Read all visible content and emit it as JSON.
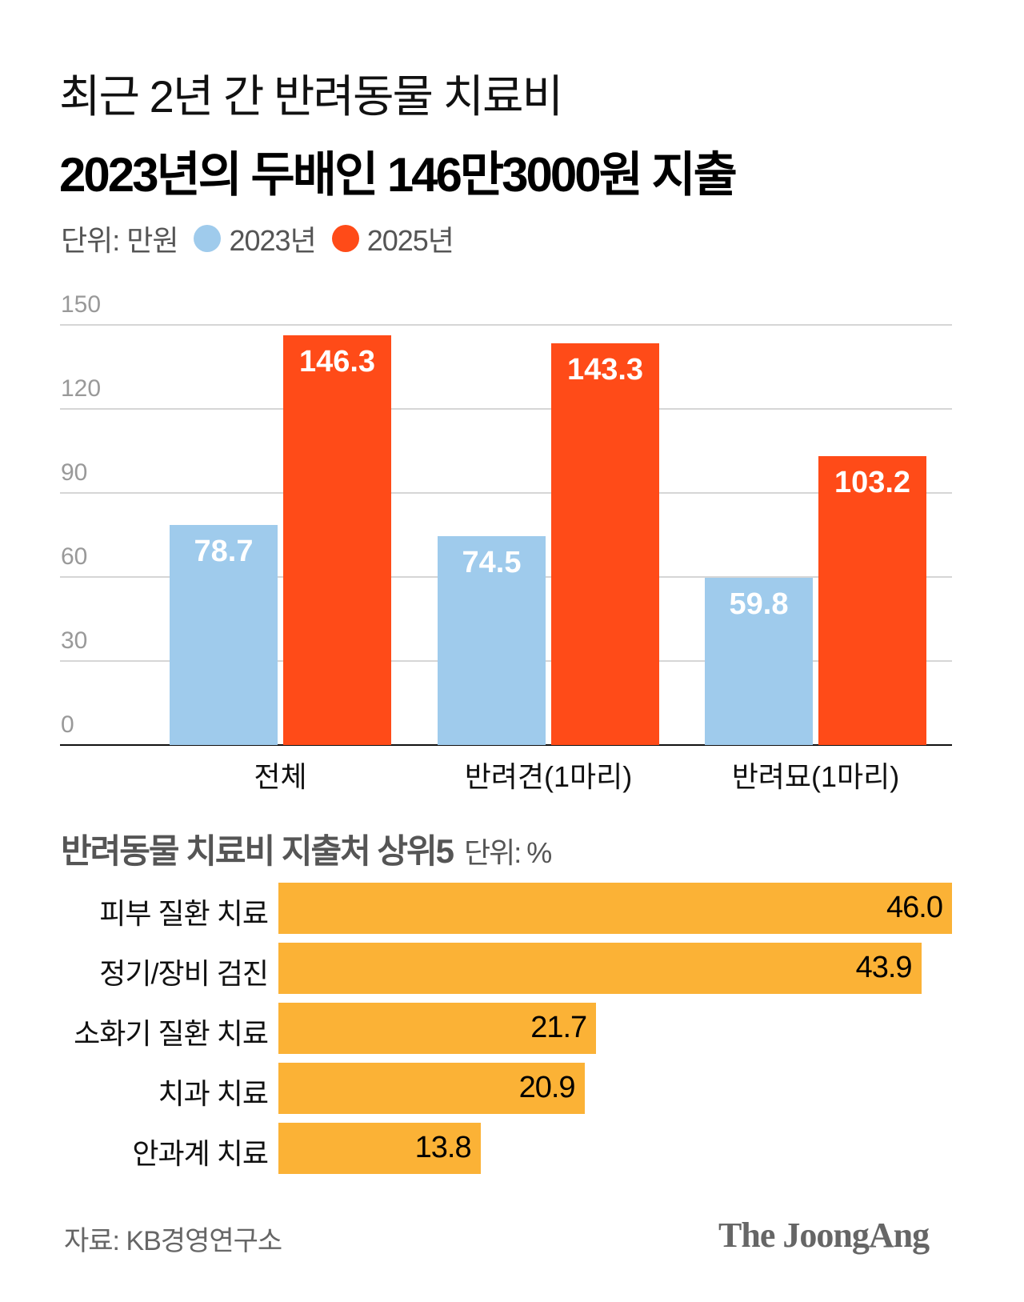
{
  "title": "최근 2년 간 반려동물 치료비",
  "subtitle": "2023년의 두배인 146만3000원 지출",
  "unit": "단위: 만원",
  "colors": {
    "2023": "#9fcbec",
    "2025": "#ff4b18",
    "share": "#fbb236"
  },
  "chart_data": [
    {
      "type": "bar",
      "categories": [
        "전체",
        "반려견(1마리)",
        "반려묘(1마리)"
      ],
      "series": [
        {
          "name": "2023년",
          "values": [
            78.7,
            74.5,
            59.8
          ],
          "labels": [
            "78.7",
            "74.5",
            "59.8"
          ]
        },
        {
          "name": "2025년",
          "values": [
            146.3,
            143.3,
            103.2
          ],
          "labels": [
            "146.3",
            "143.3",
            "103.2"
          ]
        }
      ],
      "yticks": [
        "0",
        "30",
        "60",
        "90",
        "120",
        "150"
      ],
      "ylim": [
        0,
        150
      ],
      "grid": true,
      "legend": "top-left"
    },
    {
      "type": "bar",
      "orientation": "horizontal",
      "title": "반려동물 치료비 지출처 상위5",
      "unit": "단위: %",
      "categories": [
        "피부 질환 치료",
        "정기/장비 검진",
        "소화기 질환 치료",
        "치과 치료",
        "안과계 치료"
      ],
      "values": [
        46.0,
        43.9,
        21.7,
        20.9,
        13.8
      ],
      "labels": [
        "46.0",
        "43.9",
        "21.7",
        "20.9",
        "13.8"
      ]
    }
  ],
  "source": "자료: KB경영연구소",
  "logo": "The JoongAng"
}
